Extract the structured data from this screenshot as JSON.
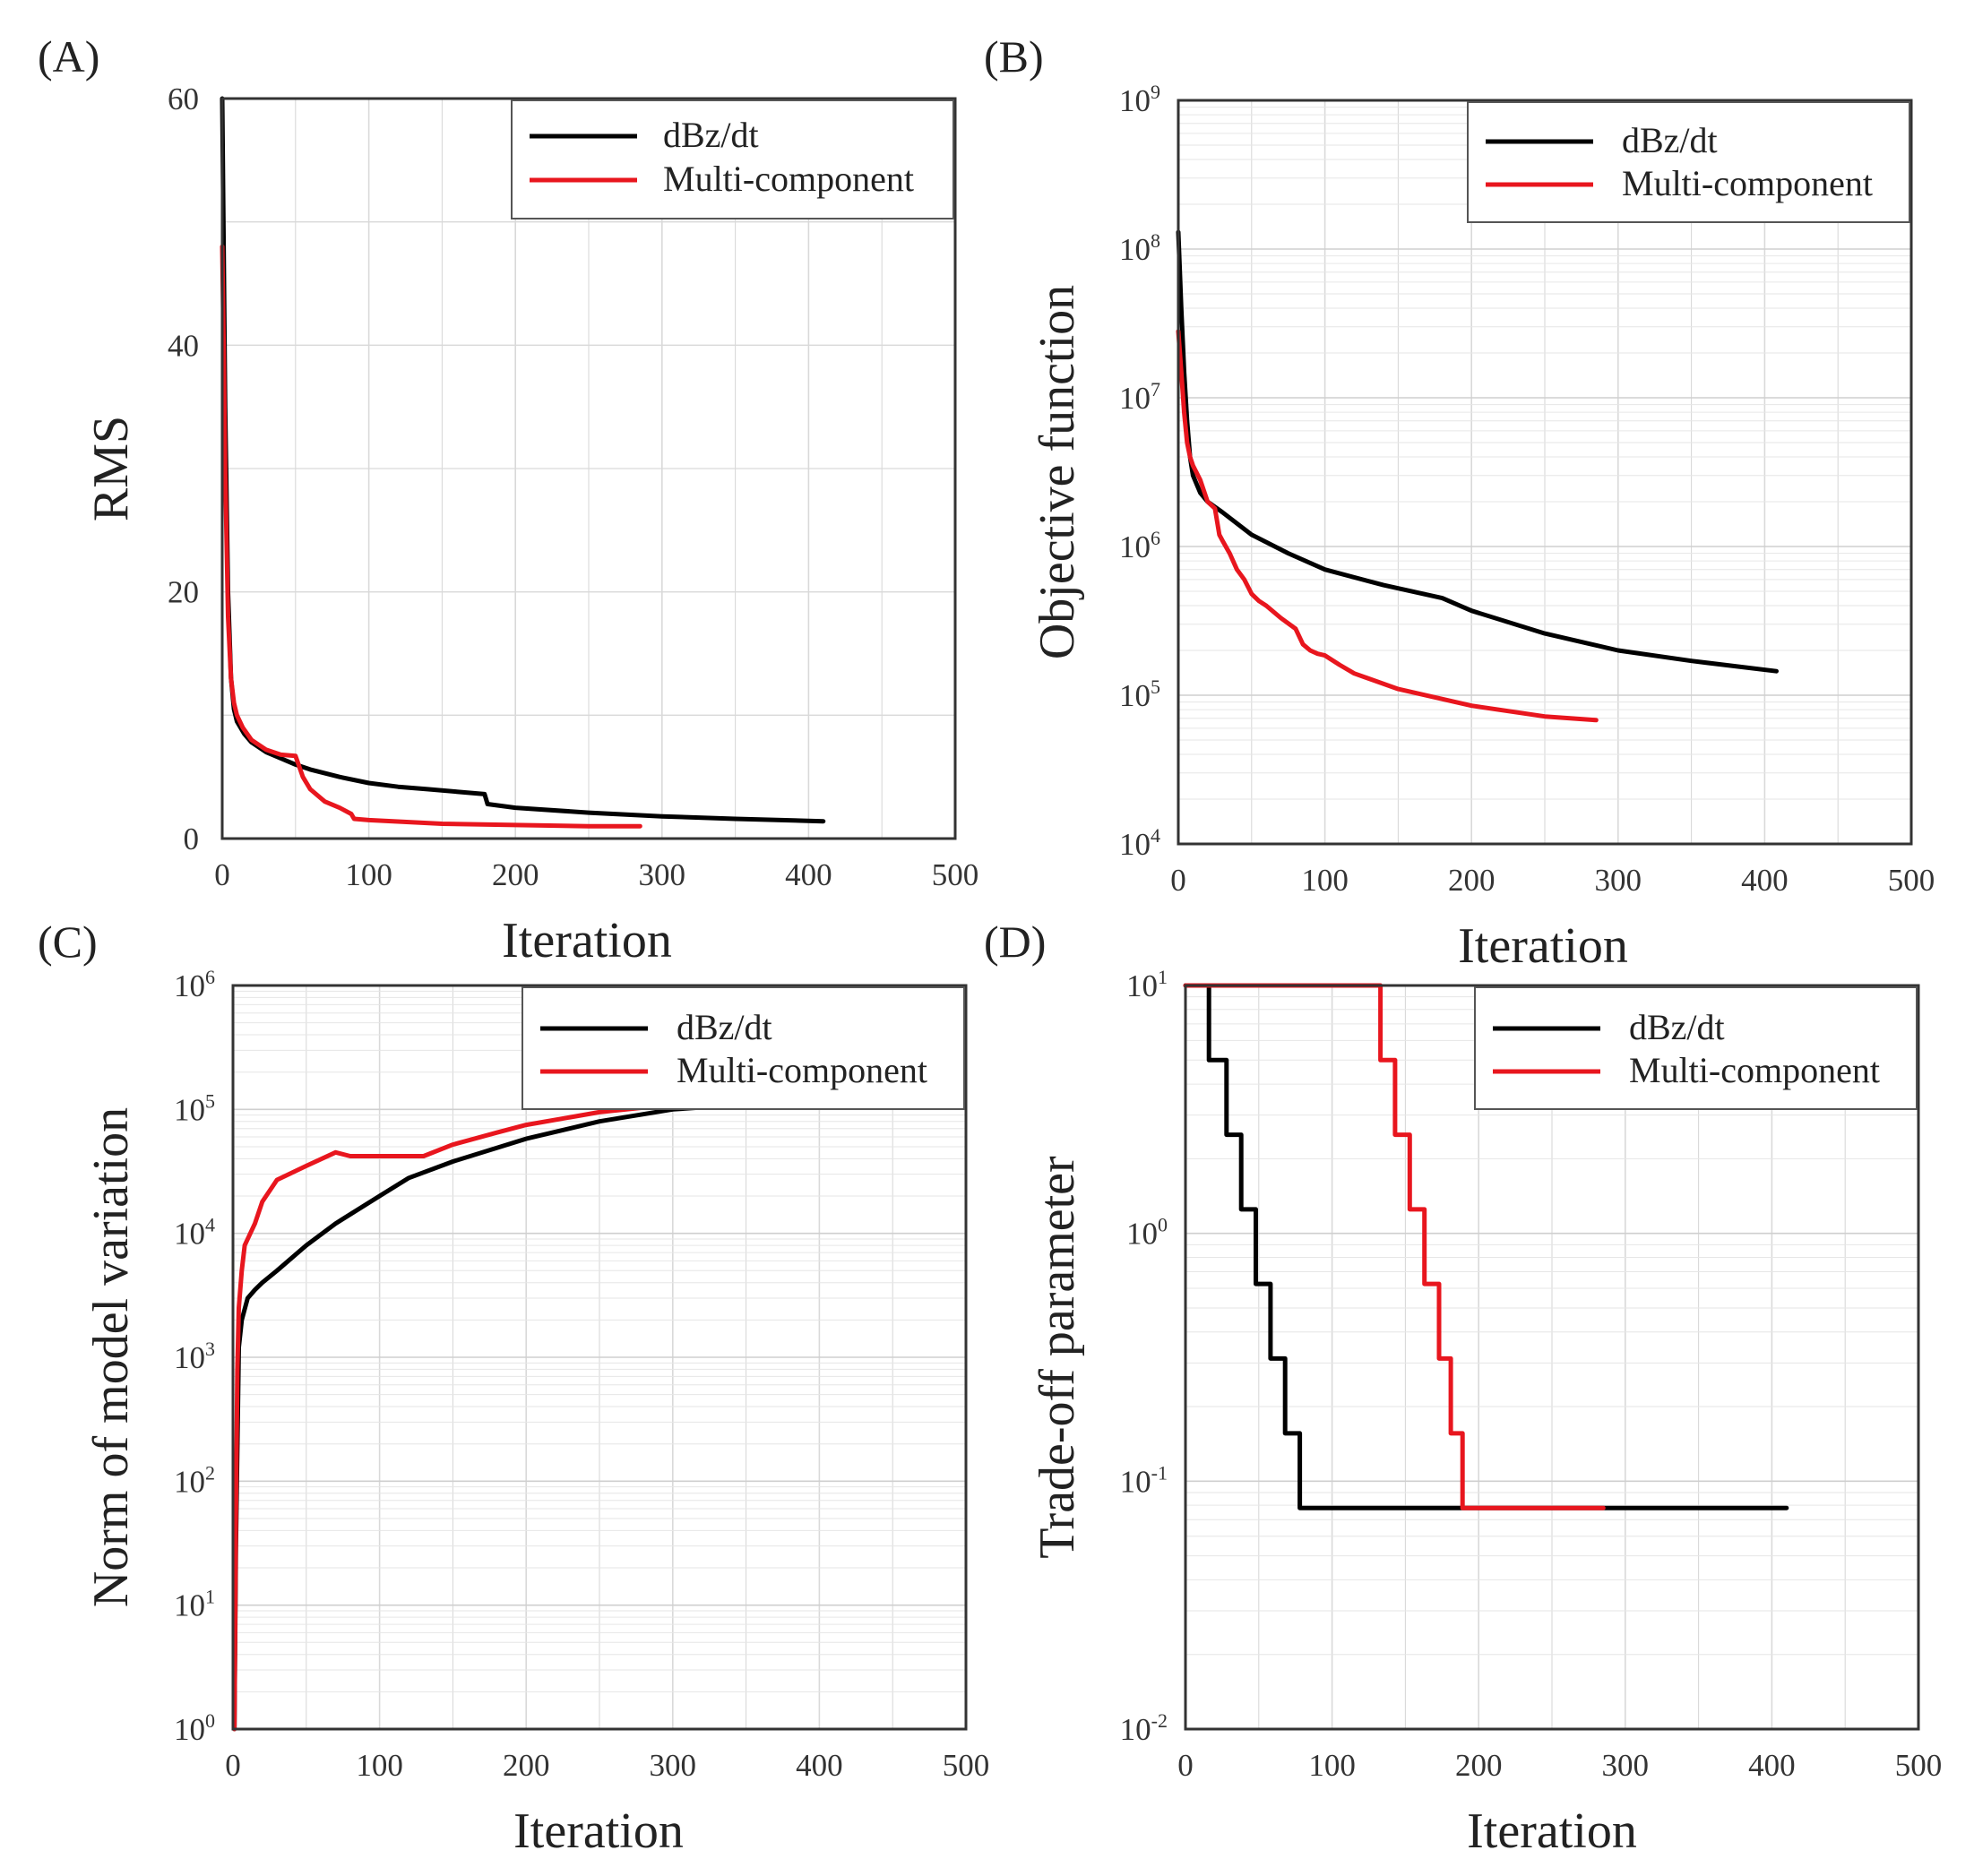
{
  "figure": {
    "series_colors": {
      "dBz/dt": "#000000",
      "Multi-component": "#e8161e"
    }
  },
  "chart_data": [
    {
      "panel_label": "(A)",
      "type": "line",
      "xlabel": "Iteration",
      "ylabel": "RMS",
      "xscale": "linear",
      "yscale": "linear",
      "xlim": [
        0,
        500
      ],
      "ylim": [
        0,
        60
      ],
      "xticks": [
        "0",
        "100",
        "200",
        "300",
        "400",
        "500"
      ],
      "yticks": [
        "0",
        "20",
        "40",
        "60"
      ],
      "grid": true,
      "legend": {
        "placement": "top-right",
        "entries": [
          "dBz/dt",
          "Multi-component"
        ]
      },
      "series": [
        {
          "name": "dBz/dt",
          "x": [
            0,
            1,
            2,
            4,
            6,
            8,
            10,
            15,
            20,
            30,
            40,
            50,
            60,
            80,
            100,
            120,
            140,
            160,
            179,
            181,
            200,
            250,
            300,
            350,
            410
          ],
          "y": [
            60,
            48,
            35,
            20,
            13,
            10.5,
            9.5,
            8.5,
            7.8,
            7,
            6.5,
            6,
            5.6,
            5,
            4.5,
            4.2,
            4,
            3.8,
            3.6,
            2.8,
            2.5,
            2.1,
            1.8,
            1.6,
            1.4
          ]
        },
        {
          "name": "Multi-component",
          "x": [
            0,
            1,
            2,
            4,
            6,
            8,
            10,
            14,
            20,
            30,
            40,
            50,
            55,
            60,
            70,
            80,
            88,
            90,
            100,
            150,
            200,
            250,
            285
          ],
          "y": [
            48,
            40,
            30,
            18,
            13,
            11,
            10,
            9,
            8,
            7.2,
            6.8,
            6.7,
            5,
            4,
            3,
            2.5,
            2,
            1.6,
            1.5,
            1.2,
            1.1,
            1,
            1
          ]
        }
      ]
    },
    {
      "panel_label": "(B)",
      "type": "line",
      "xlabel": "Iteration",
      "ylabel": "Objective function",
      "xscale": "linear",
      "yscale": "log",
      "xlim": [
        0,
        500
      ],
      "ylim": [
        10000,
        1000000000
      ],
      "xticks": [
        "0",
        "100",
        "200",
        "300",
        "400",
        "500"
      ],
      "yticks": [
        {
          "base": "10",
          "exp": "4"
        },
        {
          "base": "10",
          "exp": "5"
        },
        {
          "base": "10",
          "exp": "6"
        },
        {
          "base": "10",
          "exp": "7"
        },
        {
          "base": "10",
          "exp": "8"
        },
        {
          "base": "10",
          "exp": "9"
        }
      ],
      "grid": true,
      "legend": {
        "placement": "top-right",
        "entries": [
          "dBz/dt",
          "Multi-component"
        ]
      },
      "series": [
        {
          "name": "dBz/dt",
          "x": [
            0,
            2,
            4,
            6,
            8,
            10,
            15,
            20,
            30,
            50,
            75,
            100,
            140,
            180,
            200,
            250,
            300,
            350,
            408
          ],
          "y": [
            130000000,
            40000000,
            15000000,
            7000000,
            4000000,
            3000000,
            2300000,
            2000000,
            1700000,
            1200000,
            900000,
            700000,
            550000,
            450000,
            370000,
            260000,
            200000,
            170000,
            145000
          ]
        },
        {
          "name": "Multi-component",
          "x": [
            0,
            2,
            4,
            6,
            8,
            10,
            15,
            20,
            25,
            28,
            30,
            35,
            40,
            45,
            50,
            55,
            60,
            70,
            80,
            85,
            90,
            95,
            100,
            110,
            120,
            150,
            200,
            250,
            285
          ],
          "y": [
            28000000,
            15000000,
            8000000,
            5000000,
            4000000,
            3500000,
            2800000,
            2000000,
            1800000,
            1200000,
            1100000,
            900000,
            700000,
            600000,
            480000,
            430000,
            400000,
            330000,
            280000,
            220000,
            200000,
            190000,
            185000,
            160000,
            140000,
            110000,
            85000,
            72000,
            68000
          ]
        }
      ]
    },
    {
      "panel_label": "(C)",
      "type": "line",
      "xlabel": "Iteration",
      "ylabel": "Norm of model variation",
      "xscale": "linear",
      "yscale": "log",
      "xlim": [
        0,
        500
      ],
      "ylim": [
        1,
        1000000
      ],
      "xticks": [
        "0",
        "100",
        "200",
        "300",
        "400",
        "500"
      ],
      "yticks": [
        {
          "base": "10",
          "exp": "0"
        },
        {
          "base": "10",
          "exp": "1"
        },
        {
          "base": "10",
          "exp": "2"
        },
        {
          "base": "10",
          "exp": "3"
        },
        {
          "base": "10",
          "exp": "4"
        },
        {
          "base": "10",
          "exp": "5"
        },
        {
          "base": "10",
          "exp": "6"
        }
      ],
      "grid": true,
      "legend": {
        "placement": "top-right",
        "entries": [
          "dBz/dt",
          "Multi-component"
        ]
      },
      "series": [
        {
          "name": "dBz/dt",
          "x": [
            1,
            2,
            4,
            6,
            10,
            15,
            20,
            30,
            50,
            70,
            100,
            120,
            150,
            200,
            250,
            300,
            350,
            410
          ],
          "y": [
            1,
            30,
            1200,
            2000,
            3000,
            3500,
            4000,
            5000,
            8000,
            12000,
            20000,
            28000,
            38000,
            58000,
            80000,
            100000,
            110000,
            120000
          ]
        },
        {
          "name": "Multi-component",
          "x": [
            1,
            2,
            3,
            4,
            6,
            8,
            10,
            15,
            20,
            30,
            50,
            70,
            80,
            100,
            130,
            150,
            180,
            200,
            250,
            285
          ],
          "y": [
            1,
            50,
            800,
            2500,
            5000,
            8000,
            9000,
            12000,
            18000,
            27000,
            35000,
            45000,
            42000,
            42000,
            42000,
            52000,
            65000,
            75000,
            95000,
            105000
          ]
        }
      ]
    },
    {
      "panel_label": "(D)",
      "type": "line",
      "xlabel": "Iteration",
      "ylabel": "Trade-off parameter",
      "xscale": "linear",
      "yscale": "log",
      "xlim": [
        0,
        500
      ],
      "ylim": [
        0.01,
        10
      ],
      "xticks": [
        "0",
        "100",
        "200",
        "300",
        "400",
        "500"
      ],
      "yticks": [
        {
          "base": "10",
          "exp": "-2"
        },
        {
          "base": "10",
          "exp": "-1"
        },
        {
          "base": "10",
          "exp": "0"
        },
        {
          "base": "10",
          "exp": "1"
        }
      ],
      "grid": true,
      "legend": {
        "placement": "top-right",
        "entries": [
          "dBz/dt",
          "Multi-component"
        ]
      },
      "series": [
        {
          "name": "dBz/dt",
          "step": true,
          "x": [
            0,
            16,
            28,
            38,
            48,
            58,
            68,
            78,
            82,
            410
          ],
          "y": [
            10,
            5,
            2.5,
            1.25,
            0.625,
            0.3125,
            0.156,
            0.078,
            0.078,
            0.078
          ]
        },
        {
          "name": "Multi-component",
          "step": true,
          "x": [
            0,
            123,
            133,
            143,
            153,
            163,
            173,
            181,
            189,
            285
          ],
          "y": [
            10,
            10,
            5,
            2.5,
            1.25,
            0.625,
            0.3125,
            0.156,
            0.078,
            0.078
          ]
        }
      ]
    }
  ]
}
